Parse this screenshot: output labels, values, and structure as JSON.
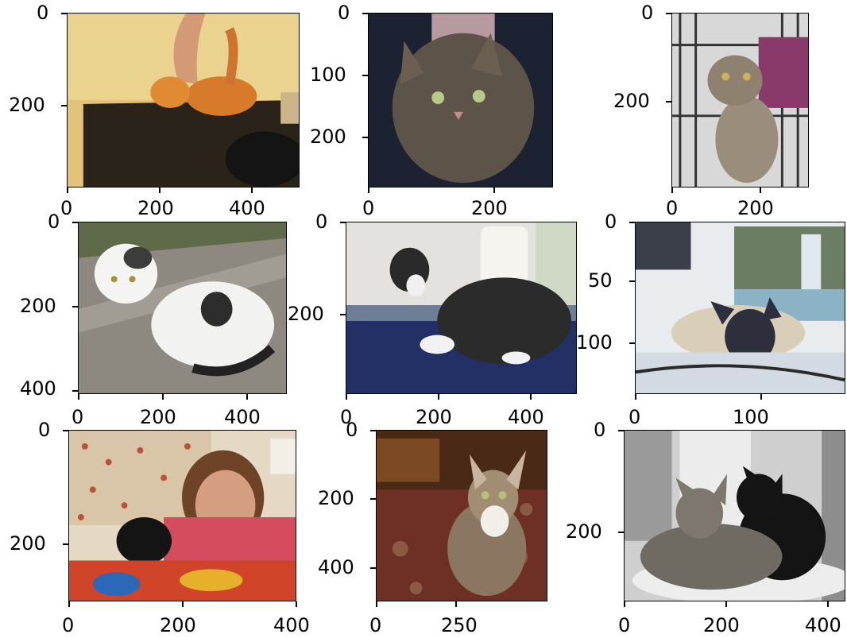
{
  "panels": [
    {
      "subject": "orange kitten on dark table with hand",
      "xticks": [
        "0",
        "200",
        "400"
      ],
      "yticks": [
        "0",
        "200"
      ]
    },
    {
      "subject": "tabby cat portrait",
      "xticks": [
        "0",
        "200"
      ],
      "yticks": [
        "0",
        "100",
        "200"
      ]
    },
    {
      "subject": "tabby kitten sitting in cage",
      "xticks": [
        "0",
        "200"
      ],
      "yticks": [
        "0",
        "200"
      ]
    },
    {
      "subject": "white kitten with black spots on sidewalk",
      "xticks": [
        "0",
        "200",
        "400"
      ],
      "yticks": [
        "0",
        "200",
        "400"
      ]
    },
    {
      "subject": "black and white cat lying on blue blanket",
      "xticks": [
        "0",
        "200",
        "400"
      ],
      "yticks": [
        "0",
        "200"
      ]
    },
    {
      "subject": "siamese cat in front of waterfall",
      "xticks": [
        "0",
        "100"
      ],
      "yticks": [
        "0",
        "50",
        "100"
      ]
    },
    {
      "subject": "girl lying in bed with black kitten",
      "xticks": [
        "0",
        "200",
        "400"
      ],
      "yticks": [
        "0",
        "200"
      ]
    },
    {
      "subject": "tabby and white kitten on rug",
      "xticks": [
        "0",
        "250"
      ],
      "yticks": [
        "0",
        "200",
        "400"
      ]
    },
    {
      "subject": "tabby cat and black cat lying together",
      "xticks": [
        "0",
        "200",
        "400"
      ],
      "yticks": [
        "0",
        "200"
      ]
    }
  ]
}
